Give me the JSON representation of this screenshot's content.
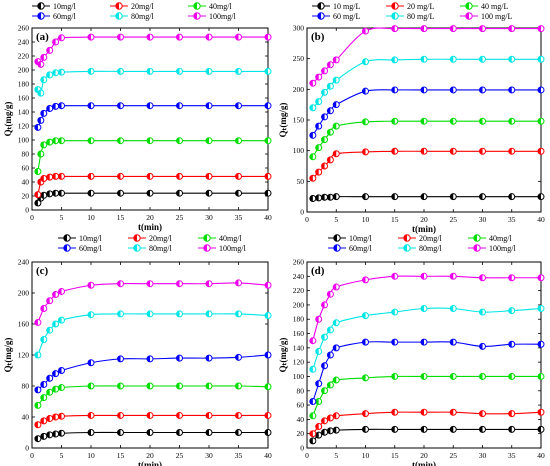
{
  "chart_data": [
    {
      "type": "line",
      "panel_label": "(a)",
      "xlabel": "t(min)",
      "ylabel": "Qₜ(mg/g)",
      "xlim": [
        0,
        40
      ],
      "ylim": [
        0,
        260
      ],
      "xticks": [
        0,
        5,
        10,
        15,
        20,
        25,
        30,
        35,
        40
      ],
      "yticks": [
        0,
        20,
        40,
        60,
        80,
        100,
        120,
        140,
        160,
        180,
        200,
        220,
        240,
        260
      ],
      "legend_position": "top",
      "series": [
        {
          "name": "10mg/l",
          "color": "#000000",
          "x": [
            1,
            1.5,
            2,
            3,
            4,
            5,
            10,
            15,
            20,
            25,
            30,
            35,
            40
          ],
          "y": [
            10,
            17,
            21,
            23,
            24,
            24,
            24,
            24,
            24,
            24,
            24,
            24,
            24
          ]
        },
        {
          "name": "20mg/l",
          "color": "#ff0000",
          "x": [
            1,
            1.5,
            2,
            3,
            4,
            5,
            10,
            15,
            20,
            25,
            30,
            35,
            40
          ],
          "y": [
            22,
            40,
            45,
            47,
            48,
            48,
            48,
            48,
            48,
            48,
            48,
            48,
            48
          ]
        },
        {
          "name": "40mg/l",
          "color": "#00dd00",
          "x": [
            1,
            1.5,
            2,
            3,
            4,
            5,
            10,
            15,
            20,
            25,
            30,
            35,
            40
          ],
          "y": [
            55,
            80,
            93,
            97,
            99,
            99,
            99,
            99,
            99,
            99,
            99,
            99,
            99
          ]
        },
        {
          "name": "60mg/l",
          "color": "#0000ff",
          "x": [
            1,
            1.5,
            2,
            3,
            4,
            5,
            10,
            15,
            20,
            25,
            30,
            35,
            40
          ],
          "y": [
            118,
            128,
            138,
            145,
            148,
            149,
            149,
            149,
            149,
            149,
            149,
            149,
            149
          ]
        },
        {
          "name": "80mg/l",
          "color": "#00e5e5",
          "x": [
            1,
            1.5,
            2,
            3,
            4,
            5,
            10,
            15,
            20,
            25,
            30,
            35,
            40
          ],
          "y": [
            172,
            167,
            186,
            193,
            196,
            197,
            198,
            198,
            198,
            198,
            198,
            198,
            198
          ]
        },
        {
          "name": "100mg/l",
          "color": "#ee00ee",
          "x": [
            1,
            1.5,
            2,
            3,
            4,
            5,
            10,
            15,
            20,
            25,
            30,
            35,
            40
          ],
          "y": [
            212,
            208,
            218,
            228,
            240,
            246,
            247,
            247,
            247,
            247,
            247,
            247,
            247
          ]
        }
      ]
    },
    {
      "type": "line",
      "panel_label": "(b)",
      "xlabel": "t(min)",
      "ylabel": "Qₜ(mg/g)",
      "xlim": [
        0,
        40
      ],
      "ylim": [
        0,
        300
      ],
      "xticks": [
        0,
        5,
        10,
        15,
        20,
        25,
        30,
        35,
        40
      ],
      "yticks": [
        0,
        50,
        100,
        150,
        200,
        250,
        300
      ],
      "legend_position": "top",
      "series": [
        {
          "name": "10 mg/L",
          "color": "#000000",
          "x": [
            1,
            2,
            3,
            4,
            5,
            10,
            15,
            20,
            25,
            30,
            35,
            40
          ],
          "y": [
            22,
            23,
            24,
            24,
            25,
            25,
            25,
            25,
            25,
            25,
            25,
            25
          ]
        },
        {
          "name": "20 mg/L",
          "color": "#ff0000",
          "x": [
            1,
            2,
            3,
            4,
            5,
            10,
            15,
            20,
            25,
            30,
            35,
            40
          ],
          "y": [
            55,
            65,
            75,
            85,
            95,
            98,
            99,
            99,
            99,
            99,
            99,
            99
          ]
        },
        {
          "name": "40 mg/L",
          "color": "#00dd00",
          "x": [
            1,
            2,
            3,
            4,
            5,
            10,
            15,
            20,
            25,
            30,
            35,
            40
          ],
          "y": [
            90,
            105,
            118,
            130,
            140,
            147,
            148,
            148,
            148,
            148,
            148,
            148
          ]
        },
        {
          "name": "60 mg/L",
          "color": "#0000ff",
          "x": [
            1,
            2,
            3,
            4,
            5,
            10,
            15,
            20,
            25,
            30,
            35,
            40
          ],
          "y": [
            125,
            140,
            155,
            165,
            175,
            197,
            199,
            199,
            199,
            199,
            199,
            199
          ]
        },
        {
          "name": "80 mg/L",
          "color": "#00e5e5",
          "x": [
            1,
            2,
            3,
            4,
            5,
            10,
            15,
            20,
            25,
            30,
            35,
            40
          ],
          "y": [
            170,
            180,
            195,
            205,
            215,
            245,
            248,
            249,
            249,
            249,
            249,
            249
          ]
        },
        {
          "name": "100 mg/L",
          "color": "#ee00ee",
          "x": [
            1,
            2,
            3,
            4,
            5,
            10,
            15,
            20,
            25,
            30,
            35,
            40
          ],
          "y": [
            210,
            220,
            230,
            240,
            248,
            295,
            299,
            299,
            299,
            299,
            299,
            299
          ]
        }
      ]
    },
    {
      "type": "line",
      "panel_label": "(c)",
      "xlabel": "t(min)",
      "ylabel": "Qₜ(mg/g)",
      "xlim": [
        0,
        40
      ],
      "ylim": [
        0,
        240
      ],
      "xticks": [
        0,
        5,
        10,
        15,
        20,
        25,
        30,
        35,
        40
      ],
      "yticks": [
        0,
        40,
        80,
        120,
        160,
        200,
        240
      ],
      "legend_position": "top",
      "series": [
        {
          "name": "10mg/l",
          "color": "#000000",
          "x": [
            1,
            2,
            3,
            4,
            5,
            10,
            15,
            20,
            25,
            30,
            35,
            40
          ],
          "y": [
            12,
            15,
            17,
            18,
            19,
            20,
            20,
            20,
            20,
            20,
            20,
            20
          ]
        },
        {
          "name": "20mg/l",
          "color": "#ff0000",
          "x": [
            1,
            2,
            3,
            4,
            5,
            10,
            15,
            20,
            25,
            30,
            35,
            40
          ],
          "y": [
            30,
            35,
            38,
            40,
            41,
            42,
            42,
            42,
            42,
            42,
            42,
            42
          ]
        },
        {
          "name": "40mg/l",
          "color": "#00dd00",
          "x": [
            1,
            2,
            3,
            4,
            5,
            10,
            15,
            20,
            25,
            30,
            35,
            40
          ],
          "y": [
            55,
            65,
            72,
            76,
            78,
            80,
            80,
            80,
            80,
            80,
            80,
            79
          ]
        },
        {
          "name": "60mg/l",
          "color": "#0000ff",
          "x": [
            1,
            2,
            3,
            4,
            5,
            10,
            15,
            20,
            25,
            30,
            35,
            40
          ],
          "y": [
            75,
            82,
            90,
            96,
            100,
            110,
            115,
            115,
            116,
            116,
            117,
            120
          ]
        },
        {
          "name": "80mg/l",
          "color": "#00e5e5",
          "x": [
            1,
            2,
            3,
            4,
            5,
            10,
            15,
            20,
            25,
            30,
            35,
            40
          ],
          "y": [
            120,
            140,
            152,
            160,
            165,
            172,
            173,
            173,
            173,
            173,
            173,
            171
          ]
        },
        {
          "name": "100mg/l",
          "color": "#ee00ee",
          "x": [
            1,
            2,
            3,
            4,
            5,
            10,
            15,
            20,
            25,
            30,
            35,
            40
          ],
          "y": [
            162,
            180,
            190,
            198,
            202,
            210,
            212,
            212,
            212,
            212,
            213,
            210
          ]
        }
      ]
    },
    {
      "type": "line",
      "panel_label": "(d)",
      "xlabel": "t(min)",
      "ylabel": "Qₜ(mg/g)",
      "xlim": [
        0,
        40
      ],
      "ylim": [
        0,
        260
      ],
      "xticks": [
        0,
        5,
        10,
        15,
        20,
        25,
        30,
        35,
        40
      ],
      "yticks": [
        0,
        20,
        40,
        60,
        80,
        100,
        120,
        140,
        160,
        180,
        200,
        220,
        240,
        260
      ],
      "legend_position": "top",
      "series": [
        {
          "name": "10mg/l",
          "color": "#000000",
          "x": [
            1,
            2,
            3,
            4,
            5,
            10,
            15,
            20,
            25,
            30,
            35,
            40
          ],
          "y": [
            10,
            18,
            22,
            24,
            25,
            26,
            26,
            26,
            26,
            26,
            26,
            26
          ]
        },
        {
          "name": "20mg/l",
          "color": "#ff0000",
          "x": [
            1,
            2,
            3,
            4,
            5,
            10,
            15,
            20,
            25,
            30,
            35,
            40
          ],
          "y": [
            20,
            30,
            38,
            42,
            45,
            48,
            50,
            50,
            50,
            48,
            48,
            50
          ]
        },
        {
          "name": "40mg/l",
          "color": "#00dd00",
          "x": [
            1,
            2,
            3,
            4,
            5,
            10,
            15,
            20,
            25,
            30,
            35,
            40
          ],
          "y": [
            45,
            65,
            80,
            88,
            95,
            98,
            100,
            100,
            100,
            100,
            100,
            100
          ]
        },
        {
          "name": "60mg/l",
          "color": "#0000ff",
          "x": [
            1,
            2,
            3,
            4,
            5,
            10,
            15,
            20,
            25,
            30,
            35,
            40
          ],
          "y": [
            65,
            90,
            115,
            130,
            140,
            148,
            148,
            148,
            148,
            142,
            145,
            145
          ]
        },
        {
          "name": "80mg/l",
          "color": "#00e5e5",
          "x": [
            1,
            2,
            3,
            4,
            5,
            10,
            15,
            20,
            25,
            30,
            35,
            40
          ],
          "y": [
            110,
            135,
            155,
            165,
            175,
            185,
            190,
            195,
            195,
            190,
            192,
            195
          ]
        },
        {
          "name": "100mg/l",
          "color": "#ee00ee",
          "x": [
            1,
            2,
            3,
            4,
            5,
            10,
            15,
            20,
            25,
            30,
            35,
            40
          ],
          "y": [
            150,
            180,
            200,
            215,
            225,
            235,
            240,
            240,
            240,
            238,
            238,
            238
          ]
        }
      ]
    }
  ]
}
